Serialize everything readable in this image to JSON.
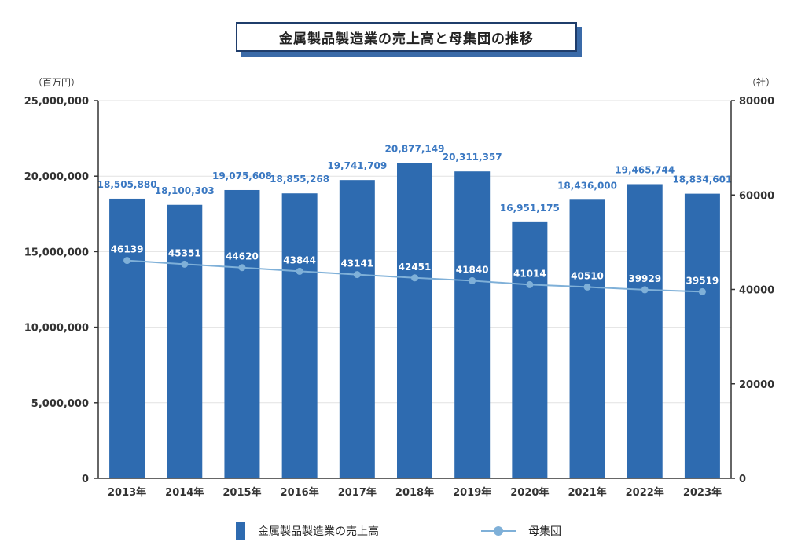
{
  "chart_data": {
    "type": "bar",
    "title": "金属製品製造業の売上高と母集団の推移",
    "categories": [
      "2013年",
      "2014年",
      "2015年",
      "2016年",
      "2017年",
      "2018年",
      "2019年",
      "2020年",
      "2021年",
      "2022年",
      "2023年"
    ],
    "series": [
      {
        "name": "金属製品製造業の売上高",
        "type": "bar",
        "axis": "left",
        "values": [
          18505880,
          18100303,
          19075608,
          18855268,
          19741709,
          20877149,
          20311357,
          16951175,
          18436000,
          19465744,
          18834601
        ],
        "labels": [
          "18,505,880",
          "18,100,303",
          "19,075,608",
          "18,855,268",
          "19,741,709",
          "20,877,149",
          "20,311,357",
          "16,951,175",
          "18,436,000",
          "19,465,744",
          "18,834,601"
        ],
        "color": "#2e6bb0"
      },
      {
        "name": "母集団",
        "type": "line",
        "axis": "right",
        "values": [
          46139,
          45351,
          44620,
          43844,
          43141,
          42451,
          41840,
          41014,
          40510,
          39929,
          39519
        ],
        "labels": [
          "46139",
          "45351",
          "44620",
          "43844",
          "43141",
          "42451",
          "41840",
          "41014",
          "40510",
          "39929",
          "39519"
        ],
        "color": "#7fb0d8"
      }
    ],
    "y_left": {
      "unit": "（百万円）",
      "ylim": [
        0,
        25000000
      ],
      "ticks": [
        0,
        5000000,
        10000000,
        15000000,
        20000000,
        25000000
      ],
      "tick_labels": [
        "0",
        "5,000,000",
        "10,000,000",
        "15,000,000",
        "20,000,000",
        "25,000,000"
      ]
    },
    "y_right": {
      "unit": "（社）",
      "ylim": [
        0,
        80000
      ],
      "ticks": [
        0,
        20000,
        40000,
        60000,
        80000
      ],
      "tick_labels": [
        "0",
        "20000",
        "40000",
        "60000",
        "80000"
      ]
    },
    "grid": true,
    "legend_position": "bottom",
    "label_color": "#3a78c2"
  }
}
